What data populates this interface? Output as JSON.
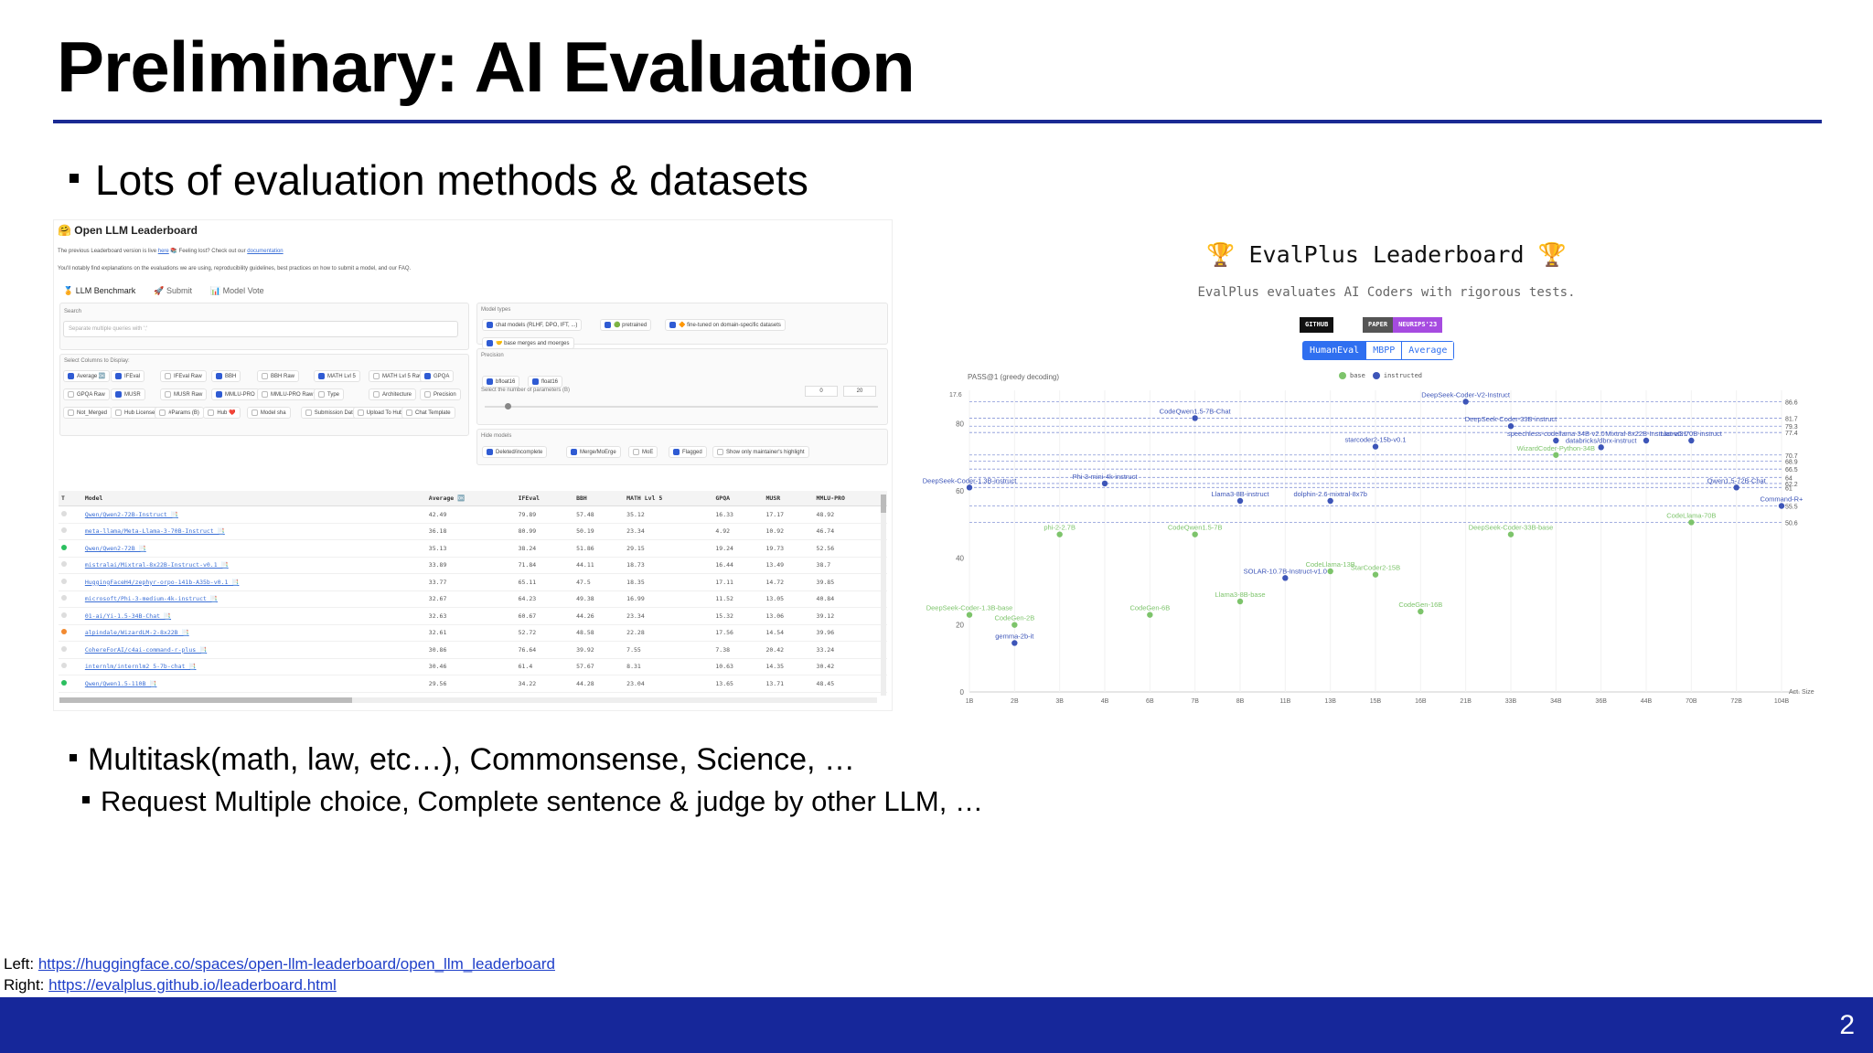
{
  "slide": {
    "title": "Preliminary: AI Evaluation",
    "bullet1": "Lots of evaluation methods & datasets",
    "bullet2": "Multitask(math, law, etc…), Commonsense, Science, …",
    "sub_bullet": "Request Multiple choice, Complete sentence & judge by other LLM, …",
    "source_left_label": "Left: ",
    "source_left_url": "https://huggingface.co/spaces/open-llm-leaderboard/open_llm_leaderboard",
    "source_right_label": "Right: ",
    "source_right_url": "https://evalplus.github.io/leaderboard.html",
    "page_number": "2",
    "colors": {
      "accent": "#1a2a93",
      "footer": "#16279a"
    }
  },
  "open_llm": {
    "header": "🤗 Open LLM Leaderboard",
    "intro1_pre": "The previous Leaderboard version is live ",
    "intro1_link": "here",
    "intro1_post": " 📚 Feeling lost? Check out our ",
    "intro1_link2": "documentation",
    "intro2": "You'll notably find explanations on the evaluations we are using, reproducibility guidelines, best practices on how to submit a model, and our FAQ.",
    "tabs": [
      "🏅 LLM Benchmark",
      "🚀 Submit",
      "📊 Model Vote"
    ],
    "search_label": "Search",
    "search_placeholder": "Separate multiple queries with ';'",
    "columns_label": "Select Columns to Display:",
    "columns": [
      {
        "label": "Average 🆗",
        "on": true
      },
      {
        "label": "IFEval",
        "on": true
      },
      {
        "label": "IFEval Raw",
        "on": false
      },
      {
        "label": "BBH",
        "on": true
      },
      {
        "label": "BBH Raw",
        "on": false
      },
      {
        "label": "MATH Lvl 5",
        "on": true
      },
      {
        "label": "MATH Lvl 5 Raw",
        "on": false
      },
      {
        "label": "GPQA",
        "on": true
      },
      {
        "label": "GPQA Raw",
        "on": false
      },
      {
        "label": "MUSR",
        "on": true
      },
      {
        "label": "MUSR Raw",
        "on": false
      },
      {
        "label": "MMLU-PRO",
        "on": true
      },
      {
        "label": "MMLU-PRO Raw",
        "on": false
      },
      {
        "label": "Type",
        "on": false
      },
      {
        "label": "Architecture",
        "on": false
      },
      {
        "label": "Precision",
        "on": false
      },
      {
        "label": "Not_Merged",
        "on": false
      },
      {
        "label": "Hub License",
        "on": false
      },
      {
        "label": "#Params (B)",
        "on": false
      },
      {
        "label": "Hub ❤️",
        "on": false
      },
      {
        "label": "Model sha",
        "on": false
      },
      {
        "label": "Submission Date",
        "on": false
      },
      {
        "label": "Upload To Hub Date",
        "on": false
      },
      {
        "label": "Chat Template",
        "on": false
      }
    ],
    "model_types_label": "Model types",
    "model_types": [
      {
        "label": "chat models (RLHF, DPO, IFT, ...)",
        "on": true
      },
      {
        "label": "🟢 pretrained",
        "on": true
      },
      {
        "label": "🔶 fine-tuned on domain-specific datasets",
        "on": true
      },
      {
        "label": "🤝 base merges and moerges",
        "on": true
      }
    ],
    "precision_label": "Precision",
    "precision": [
      {
        "label": "bfloat16",
        "on": true
      },
      {
        "label": "float16",
        "on": true
      }
    ],
    "params_label": "Select the number of parameters (B)",
    "params_min": "0",
    "params_max": "20",
    "hide_label": "Hide models",
    "hide": [
      {
        "label": "Deleted/incomplete",
        "on": true
      },
      {
        "label": "Merge/MoErge",
        "on": true
      },
      {
        "label": "MoE",
        "on": false
      },
      {
        "label": "Flagged",
        "on": true
      },
      {
        "label": "Show only maintainer's highlight",
        "on": false
      }
    ],
    "table_headers": [
      "T",
      "Model",
      "Average 🆗",
      "IFEval",
      "BBH",
      "MATH Lvl 5",
      "GPQA",
      "MUSR",
      "MMLU-PRO"
    ],
    "rows": [
      {
        "t": "",
        "model": "Qwen/Qwen2-72B-Instruct 📑",
        "avg": "42.49",
        "ifeval": "79.89",
        "bbh": "57.48",
        "math": "35.12",
        "gpqa": "16.33",
        "musr": "17.17",
        "mmlu": "48.92"
      },
      {
        "t": "",
        "model": "meta-llama/Meta-Llama-3-70B-Instruct 📑",
        "avg": "36.18",
        "ifeval": "80.99",
        "bbh": "50.19",
        "math": "23.34",
        "gpqa": "4.92",
        "musr": "10.92",
        "mmlu": "46.74"
      },
      {
        "t": "g",
        "model": "Qwen/Qwen2-72B 📑",
        "avg": "35.13",
        "ifeval": "38.24",
        "bbh": "51.86",
        "math": "29.15",
        "gpqa": "19.24",
        "musr": "19.73",
        "mmlu": "52.56"
      },
      {
        "t": "",
        "model": "mistralai/Mixtral-8x22B-Instruct-v0.1 📑",
        "avg": "33.89",
        "ifeval": "71.84",
        "bbh": "44.11",
        "math": "18.73",
        "gpqa": "16.44",
        "musr": "13.49",
        "mmlu": "38.7"
      },
      {
        "t": "",
        "model": "HuggingFaceH4/zephyr-orpo-141b-A35b-v0.1 📑",
        "avg": "33.77",
        "ifeval": "65.11",
        "bbh": "47.5",
        "math": "18.35",
        "gpqa": "17.11",
        "musr": "14.72",
        "mmlu": "39.85"
      },
      {
        "t": "",
        "model": "microsoft/Phi-3-medium-4k-instruct 📑",
        "avg": "32.67",
        "ifeval": "64.23",
        "bbh": "49.38",
        "math": "16.99",
        "gpqa": "11.52",
        "musr": "13.05",
        "mmlu": "40.84"
      },
      {
        "t": "",
        "model": "01-ai/Yi-1.5-34B-Chat 📑",
        "avg": "32.63",
        "ifeval": "60.67",
        "bbh": "44.26",
        "math": "23.34",
        "gpqa": "15.32",
        "musr": "13.06",
        "mmlu": "39.12"
      },
      {
        "t": "o",
        "model": "alpindale/WizardLM-2-8x22B 📑",
        "avg": "32.61",
        "ifeval": "52.72",
        "bbh": "48.58",
        "math": "22.28",
        "gpqa": "17.56",
        "musr": "14.54",
        "mmlu": "39.96"
      },
      {
        "t": "",
        "model": "CohereForAI/c4ai-command-r-plus 📑",
        "avg": "30.86",
        "ifeval": "76.64",
        "bbh": "39.92",
        "math": "7.55",
        "gpqa": "7.38",
        "musr": "20.42",
        "mmlu": "33.24"
      },
      {
        "t": "",
        "model": "internlm/internlm2_5-7b-chat 📑",
        "avg": "30.46",
        "ifeval": "61.4",
        "bbh": "57.67",
        "math": "8.31",
        "gpqa": "10.63",
        "musr": "14.35",
        "mmlu": "30.42"
      },
      {
        "t": "g",
        "model": "Qwen/Qwen1.5-110B 📑",
        "avg": "29.56",
        "ifeval": "34.22",
        "bbh": "44.28",
        "math": "23.04",
        "gpqa": "13.65",
        "musr": "13.71",
        "mmlu": "48.45"
      }
    ]
  },
  "evalplus": {
    "title": "🏆 EvalPlus Leaderboard 🏆",
    "subtitle": "EvalPlus evaluates AI Coders with rigorous tests.",
    "badge_github": "GITHUB",
    "badge_paper": "PAPER",
    "badge_neurips": "NEURIPS'23",
    "tabs": [
      "HumanEval",
      "MBPP",
      "Average"
    ],
    "active_tab": "HumanEval",
    "legend_base": "base",
    "legend_instructed": "instructed",
    "color_base": "#7dc46b",
    "color_instructed": "#3d55b8"
  },
  "chart_data": {
    "type": "scatter",
    "title": "",
    "ylabel": "PASS@1 (greedy decoding)",
    "xlabel": "Act. Size",
    "x_categories": [
      "1B",
      "2B",
      "3B",
      "4B",
      "6B",
      "7B",
      "8B",
      "11B",
      "13B",
      "15B",
      "16B",
      "21B",
      "33B",
      "34B",
      "36B",
      "44B",
      "70B",
      "72B",
      "104B"
    ],
    "y_ticks": [
      0,
      20,
      40,
      60,
      80
    ],
    "ylim": [
      0,
      90
    ],
    "reference_lines": [
      {
        "label": "86.6",
        "y": 86.6
      },
      {
        "label": "81.7",
        "y": 81.7
      },
      {
        "label": "79.3",
        "y": 79.3
      },
      {
        "label": "77.4",
        "y": 77.4
      },
      {
        "label": "70.7",
        "y": 70.7
      },
      {
        "label": "68.9",
        "y": 68.9
      },
      {
        "label": "66.5",
        "y": 66.5
      },
      {
        "label": "64",
        "y": 64
      },
      {
        "label": "62.2",
        "y": 62.2
      },
      {
        "label": "61",
        "y": 61
      },
      {
        "label": "55.5",
        "y": 55.5
      },
      {
        "label": "50.6",
        "y": 50.6
      }
    ],
    "top_left_label": "17.6",
    "series": [
      {
        "name": "instructed",
        "points": [
          {
            "x": "21B",
            "y": 86.6,
            "label": "DeepSeek-Coder-V2-Instruct"
          },
          {
            "x": "7B",
            "y": 81.7,
            "label": "CodeQwen1.5-7B-Chat"
          },
          {
            "x": "33B",
            "y": 79.3,
            "label": "DeepSeek-Coder-33B-instruct"
          },
          {
            "x": "15B",
            "y": 73.2,
            "label": "starcoder2-15b-v0.1"
          },
          {
            "x": "34B",
            "y": 75.0,
            "label": "speechless-codellama-34B-v2.0"
          },
          {
            "x": "44B",
            "y": 75.0,
            "label": "Mixtral-8x22B-Instruct-v0.1"
          },
          {
            "x": "70B",
            "y": 75.0,
            "label": "Llama3-70B-instruct"
          },
          {
            "x": "36B",
            "y": 73.0,
            "label": "databricks/dbrx-instruct"
          },
          {
            "x": "1B",
            "y": 61.0,
            "label": "DeepSeek-Coder-1.3B-instruct"
          },
          {
            "x": "4B",
            "y": 62.2,
            "label": "Phi-3-mini-4k-instruct"
          },
          {
            "x": "8B",
            "y": 57.0,
            "label": "Llama3-8B-instruct"
          },
          {
            "x": "13B",
            "y": 57.0,
            "label": "dolphin-2.6-mixtral-8x7b"
          },
          {
            "x": "104B",
            "y": 55.5,
            "label": "Command-R+"
          },
          {
            "x": "72B",
            "y": 61.0,
            "label": "Qwen1.5-72B-Chat"
          },
          {
            "x": "11B",
            "y": 34.0,
            "label": "SOLAR-10.7B-Instruct-v1.0"
          },
          {
            "x": "2B",
            "y": 14.6,
            "label": "gemma-2b-it"
          }
        ]
      },
      {
        "name": "base",
        "points": [
          {
            "x": "34B",
            "y": 70.7,
            "label": "WizardCoder-Python-34B"
          },
          {
            "x": "70B",
            "y": 50.6,
            "label": "CodeLlama-70B"
          },
          {
            "x": "3B",
            "y": 47.0,
            "label": "phi-2-2.7B"
          },
          {
            "x": "7B",
            "y": 47.0,
            "label": "CodeQwen1.5-7B"
          },
          {
            "x": "33B",
            "y": 47.0,
            "label": "DeepSeek-Coder-33B-base"
          },
          {
            "x": "13B",
            "y": 36.0,
            "label": "CodeLlama-13B"
          },
          {
            "x": "15B",
            "y": 35.0,
            "label": "StarCoder2-15B"
          },
          {
            "x": "8B",
            "y": 27.0,
            "label": "Llama3-8B-base"
          },
          {
            "x": "16B",
            "y": 24.0,
            "label": "CodeGen-16B"
          },
          {
            "x": "6B",
            "y": 23.0,
            "label": "CodeGen-6B"
          },
          {
            "x": "1B",
            "y": 23.0,
            "label": "DeepSeek-Coder-1.3B-base"
          },
          {
            "x": "2B",
            "y": 20.0,
            "label": "CodeGen-2B"
          }
        ]
      }
    ]
  }
}
